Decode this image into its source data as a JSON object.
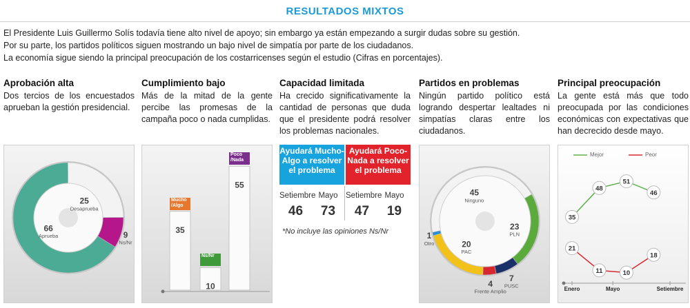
{
  "header": {
    "title": "RESULTADOS MIXTOS",
    "lines": [
      "El Presidente Luis Guillermo Solís todavía tiene alto nivel de apoyo; sin embargo ya están empezando a surgir dudas sobre su gestión.",
      "Por su parte, los partidos políticos siguen mostrando un bajo nivel de simpatía por parte de los ciudadanos.",
      "La economía sigue siendo la principal preocupación de los costarricenses según el estudio (Cifras en porcentajes)."
    ]
  },
  "panels": [
    {
      "title": "Aprobación alta",
      "text": "Dos tercios de los encuestados aprueban la gestión presidencial."
    },
    {
      "title": "Cumplimiento bajo",
      "text": "Más de la mitad de la gente percibe las promesas de la campaña poco o nada cumplidas."
    },
    {
      "title": "Capacidad limitada",
      "text": "Ha crecido significativamente la cantidad de personas que duda que el presidente podrá resolver los problemas nacionales."
    },
    {
      "title": "Partidos en problemas",
      "text": "Ningún partido político está logrando despertar lealtades ni simpatías claras entre los ciudadanos."
    },
    {
      "title": "Principal preocupación",
      "text": "La gente está más que todo preocupada por las condiciones económicas con expectativas que han decrecido desde mayo."
    }
  ],
  "chart_data": [
    {
      "type": "pie",
      "categories": [
        "Aprueba",
        "Desaprueba",
        "Ns/Nr"
      ],
      "values": [
        66,
        25,
        9
      ],
      "colors": [
        "#4cab94",
        "#f3f3f3",
        "#b5178b"
      ]
    },
    {
      "type": "bar",
      "categories": [
        "Mucho /Algo",
        "Ns/Nr",
        "Poco /Nada"
      ],
      "values": [
        35,
        10,
        55
      ],
      "colors": [
        "#e8772e",
        "#3f9a3a",
        "#7a2f8c"
      ],
      "ylim": [
        0,
        60
      ]
    },
    {
      "type": "table",
      "groups": [
        {
          "header": "Ayudará Mucho-Algo a resolver el problema",
          "color": "#16a3de",
          "columns": [
            "Setiembre",
            "Mayo"
          ],
          "values": [
            46,
            73
          ]
        },
        {
          "header": "Ayudará Poco-Nada a resolver el problema",
          "color": "#e2232b",
          "columns": [
            "Setiembre",
            "Mayo"
          ],
          "values": [
            47,
            19
          ]
        }
      ],
      "note": "*No incluye las opiniones Ns/Nr"
    },
    {
      "type": "pie",
      "categories": [
        "Ninguno",
        "PLN",
        "PUSC",
        "Frente Amplio",
        "PAC",
        "Otro"
      ],
      "values": [
        45,
        23,
        7,
        4,
        20,
        1
      ],
      "colors": [
        "#f3f3f3",
        "#5aab3c",
        "#1b2f6b",
        "#d7282f",
        "#f2c21b",
        "#2a8fd0"
      ]
    },
    {
      "type": "line",
      "x": [
        0,
        1,
        2,
        3
      ],
      "xlim": [
        0,
        3.6
      ],
      "xticks": [
        {
          "value": 0,
          "label": "Enero"
        },
        {
          "value": 1.5,
          "label": "Mayo"
        },
        {
          "value": 3.6,
          "label": "Setiembre"
        }
      ],
      "ylim": [
        0,
        60
      ],
      "series": [
        {
          "name": "Mejor",
          "color": "#5bb04a",
          "values": [
            35,
            48,
            51,
            46
          ]
        },
        {
          "name": "Peor",
          "color": "#d6282f",
          "values": [
            21,
            11,
            10,
            18
          ]
        }
      ]
    }
  ]
}
